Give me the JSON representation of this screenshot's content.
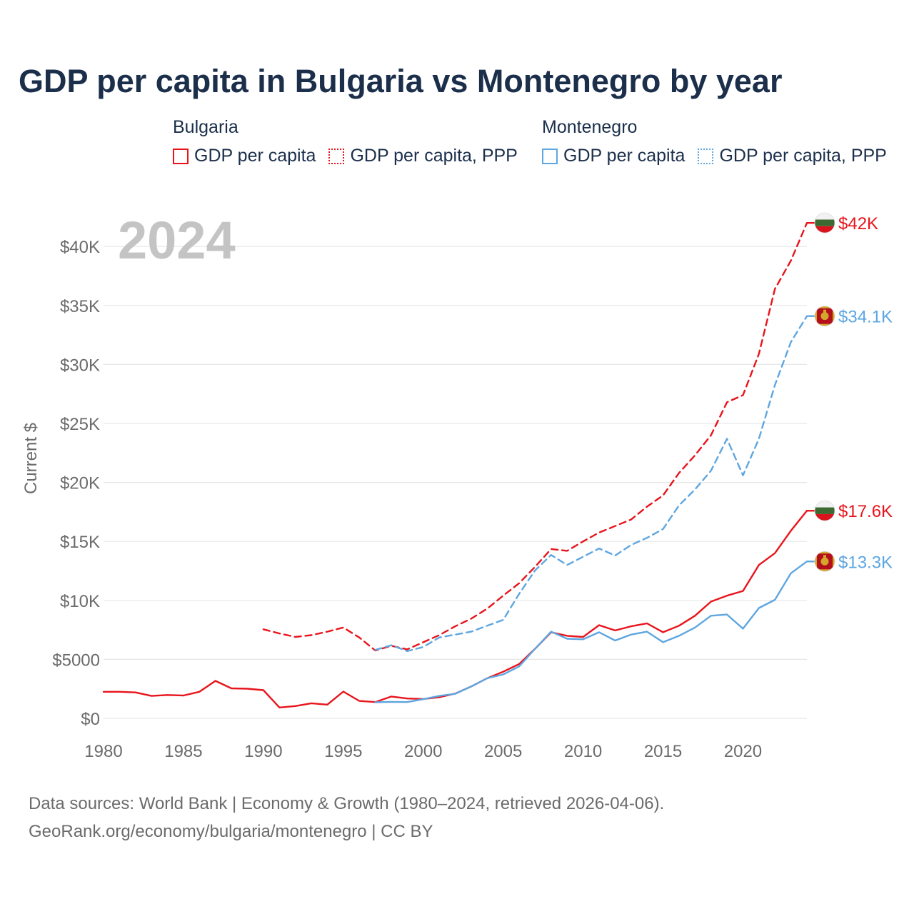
{
  "chart_data": {
    "type": "line",
    "title": "GDP per capita in Bulgaria vs Montenegro by year",
    "ylabel": "Current $",
    "xlabel": "",
    "xlim": [
      1980,
      2024
    ],
    "ylim": [
      0,
      42000
    ],
    "year_watermark": "2024",
    "y_ticks": [
      {
        "value": 0,
        "label": "$0"
      },
      {
        "value": 5000,
        "label": "$5000"
      },
      {
        "value": 10000,
        "label": "$10K"
      },
      {
        "value": 15000,
        "label": "$15K"
      },
      {
        "value": 20000,
        "label": "$20K"
      },
      {
        "value": 25000,
        "label": "$25K"
      },
      {
        "value": 30000,
        "label": "$30K"
      },
      {
        "value": 35000,
        "label": "$35K"
      },
      {
        "value": 40000,
        "label": "$40K"
      }
    ],
    "x_ticks": [
      {
        "value": 1980,
        "label": "1980"
      },
      {
        "value": 1985,
        "label": "1985"
      },
      {
        "value": 1990,
        "label": "1990"
      },
      {
        "value": 1995,
        "label": "1995"
      },
      {
        "value": 2000,
        "label": "2000"
      },
      {
        "value": 2005,
        "label": "2005"
      },
      {
        "value": 2010,
        "label": "2010"
      },
      {
        "value": 2015,
        "label": "2015"
      },
      {
        "value": 2020,
        "label": "2020"
      }
    ],
    "legend_groups": [
      {
        "name": "Bulgaria",
        "items": [
          "GDP per capita",
          "GDP per capita, PPP"
        ]
      },
      {
        "name": "Montenegro",
        "items": [
          "GDP per capita",
          "GDP per capita, PPP"
        ]
      }
    ],
    "series": [
      {
        "name": "Bulgaria GDP per capita",
        "country": "Bulgaria",
        "style": "solid",
        "color": "#e8141c",
        "end_label": "$17.6K",
        "x": [
          1980,
          1981,
          1982,
          1983,
          1984,
          1985,
          1986,
          1987,
          1988,
          1989,
          1990,
          1991,
          1992,
          1993,
          1994,
          1995,
          1996,
          1997,
          1998,
          1999,
          2000,
          2001,
          2002,
          2003,
          2004,
          2005,
          2006,
          2007,
          2008,
          2009,
          2010,
          2011,
          2012,
          2013,
          2014,
          2015,
          2016,
          2017,
          2018,
          2019,
          2020,
          2021,
          2022,
          2023,
          2024
        ],
        "y": [
          2250,
          2250,
          2200,
          1900,
          1980,
          1940,
          2250,
          3180,
          2540,
          2510,
          2390,
          920,
          1040,
          1280,
          1160,
          2270,
          1480,
          1380,
          1850,
          1680,
          1640,
          1790,
          2100,
          2700,
          3400,
          3950,
          4600,
          5900,
          7300,
          7000,
          6900,
          7900,
          7450,
          7800,
          8050,
          7300,
          7850,
          8700,
          9900,
          10400,
          10800,
          13000,
          14000,
          15900,
          17600
        ]
      },
      {
        "name": "Bulgaria GDP per capita, PPP",
        "country": "Bulgaria",
        "style": "dashed",
        "color": "#e8141c",
        "end_label": "$42K",
        "x": [
          1990,
          1991,
          1992,
          1993,
          1994,
          1995,
          1996,
          1997,
          1998,
          1999,
          2000,
          2001,
          2002,
          2003,
          2004,
          2005,
          2006,
          2007,
          2008,
          2009,
          2010,
          2011,
          2012,
          2013,
          2014,
          2015,
          2016,
          2017,
          2018,
          2019,
          2020,
          2021,
          2022,
          2023,
          2024
        ],
        "y": [
          7550,
          7200,
          6900,
          7050,
          7350,
          7700,
          6850,
          5750,
          6150,
          5850,
          6450,
          7050,
          7800,
          8450,
          9300,
          10400,
          11450,
          12850,
          14350,
          14200,
          15000,
          15750,
          16300,
          16850,
          17950,
          18900,
          20800,
          22300,
          24000,
          26800,
          27400,
          30900,
          36400,
          38800,
          42000
        ]
      },
      {
        "name": "Montenegro GDP per capita",
        "country": "Montenegro",
        "style": "solid",
        "color": "#5ea6e0",
        "end_label": "$13.3K",
        "x": [
          1997,
          1998,
          1999,
          2000,
          2001,
          2002,
          2003,
          2004,
          2005,
          2006,
          2007,
          2008,
          2009,
          2010,
          2011,
          2012,
          2013,
          2014,
          2015,
          2016,
          2017,
          2018,
          2019,
          2020,
          2021,
          2022,
          2023,
          2024
        ],
        "y": [
          1360,
          1400,
          1380,
          1620,
          1900,
          2080,
          2700,
          3400,
          3720,
          4400,
          5900,
          7350,
          6750,
          6700,
          7300,
          6600,
          7100,
          7350,
          6450,
          7000,
          7700,
          8700,
          8800,
          7600,
          9350,
          10050,
          12300,
          13300
        ]
      },
      {
        "name": "Montenegro GDP per capita, PPP",
        "country": "Montenegro",
        "style": "dashed",
        "color": "#5ea6e0",
        "end_label": "$34.1K",
        "x": [
          1997,
          1998,
          1999,
          2000,
          2001,
          2002,
          2003,
          2004,
          2005,
          2006,
          2007,
          2008,
          2009,
          2010,
          2011,
          2012,
          2013,
          2014,
          2015,
          2016,
          2017,
          2018,
          2019,
          2020,
          2021,
          2022,
          2023,
          2024
        ],
        "y": [
          5800,
          6200,
          5700,
          6050,
          6850,
          7100,
          7350,
          7850,
          8350,
          10550,
          12550,
          13850,
          13000,
          13700,
          14400,
          13800,
          14700,
          15300,
          16050,
          18050,
          19400,
          21000,
          23700,
          20600,
          23700,
          28250,
          31900,
          34100
        ]
      }
    ]
  },
  "footer": {
    "line1": "Data sources: World Bank | Economy & Growth (1980–2024, retrieved 2026-04-06).",
    "line2": "GeoRank.org/economy/bulgaria/montenegro | CC BY"
  },
  "colors": {
    "bulgaria": "#e8141c",
    "montenegro": "#5ea6e0",
    "title": "#1b2f4b",
    "axis_text": "#6b6b6b",
    "grid": "#e6e6e6",
    "watermark": "#c4c4c4"
  }
}
